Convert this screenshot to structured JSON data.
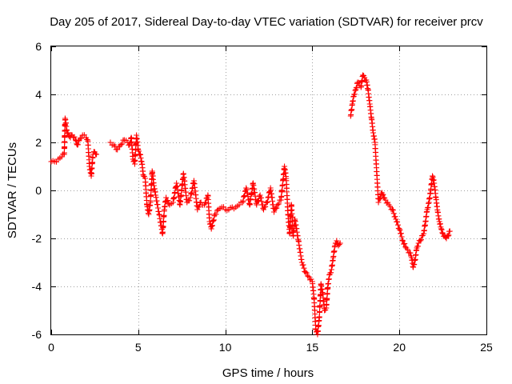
{
  "chart_data": {
    "type": "scatter",
    "title": "Day 205 of 2017, Sidereal Day-to-day VTEC variation (SDTVAR) for receiver prcv",
    "xlabel": "GPS time / hours",
    "ylabel": "SDTVAR / TECUs",
    "xlim": [
      0,
      25
    ],
    "ylim": [
      -6,
      6
    ],
    "xticks": [
      0,
      5,
      10,
      15,
      20,
      25
    ],
    "yticks": [
      -6,
      -4,
      -2,
      0,
      2,
      4,
      6
    ],
    "grid": true,
    "marker": "+",
    "color": "#ff0000",
    "series": [
      {
        "name": "SDTVAR",
        "x": [
          0.0,
          0.2,
          0.4,
          0.6,
          0.75,
          0.8,
          0.9,
          1.0,
          1.1,
          1.2,
          1.4,
          1.5,
          1.6,
          1.8,
          2.0,
          2.1,
          2.2,
          2.3,
          2.4,
          2.5,
          2.6,
          3.4,
          3.6,
          3.8,
          4.0,
          4.2,
          4.4,
          4.5,
          4.6,
          4.7,
          4.8,
          4.9,
          5.0,
          5.1,
          5.2,
          5.3,
          5.4,
          5.5,
          5.6,
          5.7,
          5.8,
          5.9,
          6.0,
          6.2,
          6.4,
          6.5,
          6.6,
          6.8,
          7.0,
          7.2,
          7.4,
          7.6,
          7.8,
          8.0,
          8.2,
          8.4,
          8.6,
          8.8,
          9.0,
          9.1,
          9.2,
          9.4,
          9.6,
          9.8,
          10.0,
          10.2,
          10.4,
          10.6,
          10.8,
          11.0,
          11.2,
          11.4,
          11.6,
          11.8,
          12.0,
          12.2,
          12.4,
          12.6,
          12.8,
          13.0,
          13.2,
          13.4,
          13.5,
          13.6,
          13.7,
          13.8,
          13.9,
          14.0,
          14.2,
          14.4,
          14.6,
          14.8,
          15.0,
          15.1,
          15.2,
          15.3,
          15.4,
          15.5,
          15.6,
          15.7,
          15.8,
          15.9,
          16.0,
          16.1,
          16.2,
          16.3,
          16.4,
          16.5,
          16.6,
          17.2,
          17.3,
          17.4,
          17.5,
          17.6,
          17.8,
          17.9,
          18.0,
          18.1,
          18.2,
          18.3,
          18.4,
          18.5,
          18.6,
          18.8,
          19.0,
          19.1,
          19.2,
          19.4,
          19.6,
          19.8,
          20.0,
          20.2,
          20.4,
          20.6,
          20.7,
          20.8,
          20.9,
          21.0,
          21.1,
          21.2,
          21.4,
          21.5,
          21.6,
          21.7,
          21.8,
          21.9,
          22.0,
          22.1,
          22.2,
          22.3,
          22.4,
          22.5,
          22.6,
          22.7,
          22.8,
          22.9
        ],
        "y": [
          1.2,
          1.2,
          1.3,
          1.4,
          1.5,
          3.0,
          2.5,
          2.3,
          2.2,
          2.3,
          2.1,
          1.9,
          2.1,
          2.3,
          2.2,
          2.1,
          1.0,
          0.6,
          1.5,
          1.6,
          1.5,
          2.0,
          1.9,
          1.7,
          1.9,
          2.1,
          2.0,
          1.9,
          2.2,
          1.3,
          1.1,
          2.3,
          1.7,
          1.5,
          1.2,
          0.6,
          0.5,
          -0.6,
          -1.0,
          -0.5,
          0.8,
          0.2,
          -0.2,
          -1.0,
          -1.8,
          -0.8,
          -0.3,
          -0.6,
          -0.5,
          0.3,
          -0.6,
          0.7,
          -0.5,
          -0.3,
          0.4,
          -0.8,
          -0.5,
          -0.6,
          -0.2,
          -1.3,
          -1.6,
          -1.0,
          -0.8,
          -0.7,
          -0.8,
          -0.8,
          -0.7,
          -0.7,
          -0.6,
          -0.5,
          0.1,
          -0.6,
          0.3,
          -0.6,
          -0.2,
          -0.8,
          -0.5,
          0.1,
          -0.9,
          -0.6,
          -0.4,
          1.0,
          0.5,
          -1.0,
          -1.8,
          -0.6,
          -1.9,
          -1.2,
          -2.1,
          -3.0,
          -3.4,
          -3.6,
          -3.8,
          -4.5,
          -5.8,
          -6.0,
          -5.3,
          -3.9,
          -4.3,
          -5.0,
          -4.9,
          -3.9,
          -3.5,
          -3.3,
          -2.8,
          -2.3,
          -2.1,
          -2.3,
          -2.2,
          3.1,
          3.6,
          4.0,
          4.2,
          4.5,
          4.3,
          4.8,
          4.7,
          4.6,
          4.2,
          3.6,
          3.0,
          2.4,
          2.0,
          -0.5,
          -0.1,
          -0.3,
          -0.4,
          -0.6,
          -0.8,
          -1.2,
          -1.6,
          -2.1,
          -2.4,
          -2.6,
          -2.8,
          -3.2,
          -2.9,
          -2.4,
          -2.2,
          -2.1,
          -1.8,
          -1.3,
          -0.8,
          -0.5,
          0.0,
          0.6,
          0.3,
          -0.3,
          -0.9,
          -1.3,
          -1.6,
          -1.8,
          -1.9,
          -2.0,
          -1.9,
          -1.7
        ]
      }
    ]
  }
}
